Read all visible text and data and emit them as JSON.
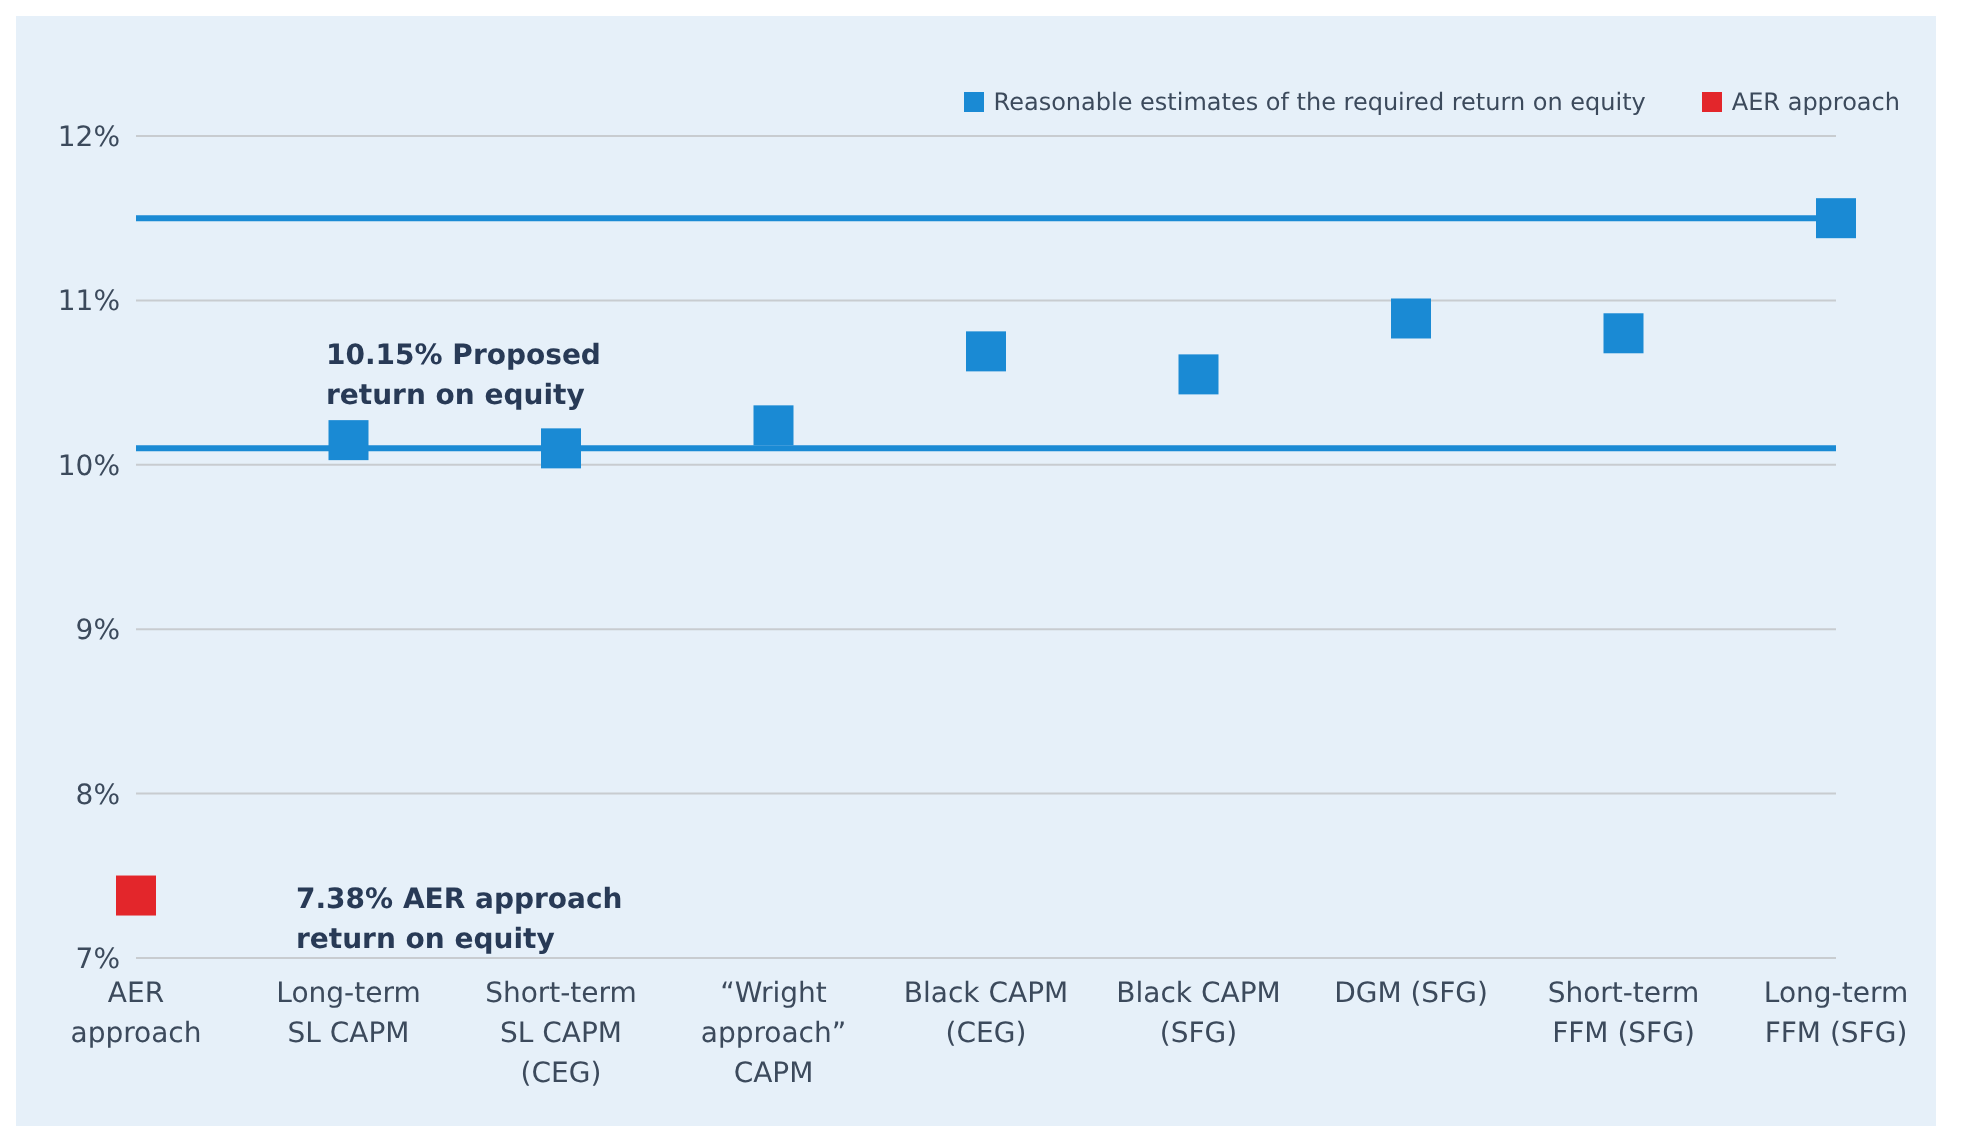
{
  "chart_data": {
    "type": "scatter",
    "categories": [
      "AER\napproach",
      "Long-term\nSL CAPM",
      "Short-term\nSL CAPM\n(CEG)",
      "“Wright\napproach”\nCAPM",
      "Black CAPM\n(CEG)",
      "Black CAPM\n(SFG)",
      "DGM (SFG)",
      "Short-term\nFFM (SFG)",
      "Long-term\nFFM (SFG)"
    ],
    "series": [
      {
        "type": "line",
        "marker": "none",
        "color": "#1a8ad4",
        "values": [
          11.5,
          11.5,
          11.5,
          11.5,
          11.5,
          11.5,
          11.5,
          11.5,
          11.5
        ]
      },
      {
        "type": "line",
        "marker": "none",
        "color": "#1a8ad4",
        "values": [
          10.1,
          10.1,
          10.1,
          10.1,
          10.1,
          10.1,
          10.1,
          10.1,
          10.1
        ]
      },
      {
        "name": "Reasonable estimates of the required return on equity",
        "marker": "square",
        "color": "#1a8ad4",
        "values": [
          null,
          10.15,
          10.1,
          10.24,
          10.69,
          10.55,
          10.89,
          10.8,
          11.5
        ]
      },
      {
        "name": "AER approach",
        "marker": "square",
        "color": "#e3262b",
        "values": [
          7.38,
          null,
          null,
          null,
          null,
          null,
          null,
          null,
          null
        ]
      }
    ],
    "ylim": [
      7,
      12
    ],
    "yticks": [
      {
        "value": 7,
        "label": "7%"
      },
      {
        "value": 8,
        "label": "8%"
      },
      {
        "value": 9,
        "label": "9%"
      },
      {
        "value": 10,
        "label": "10%"
      },
      {
        "value": 11,
        "label": "11%"
      },
      {
        "value": 12,
        "label": "12%"
      }
    ],
    "grid": "y",
    "legend": "top right",
    "annotations": [
      "10.15% Proposed\nreturn on equity",
      "7.38% AER approach\nreturn on equity"
    ]
  }
}
